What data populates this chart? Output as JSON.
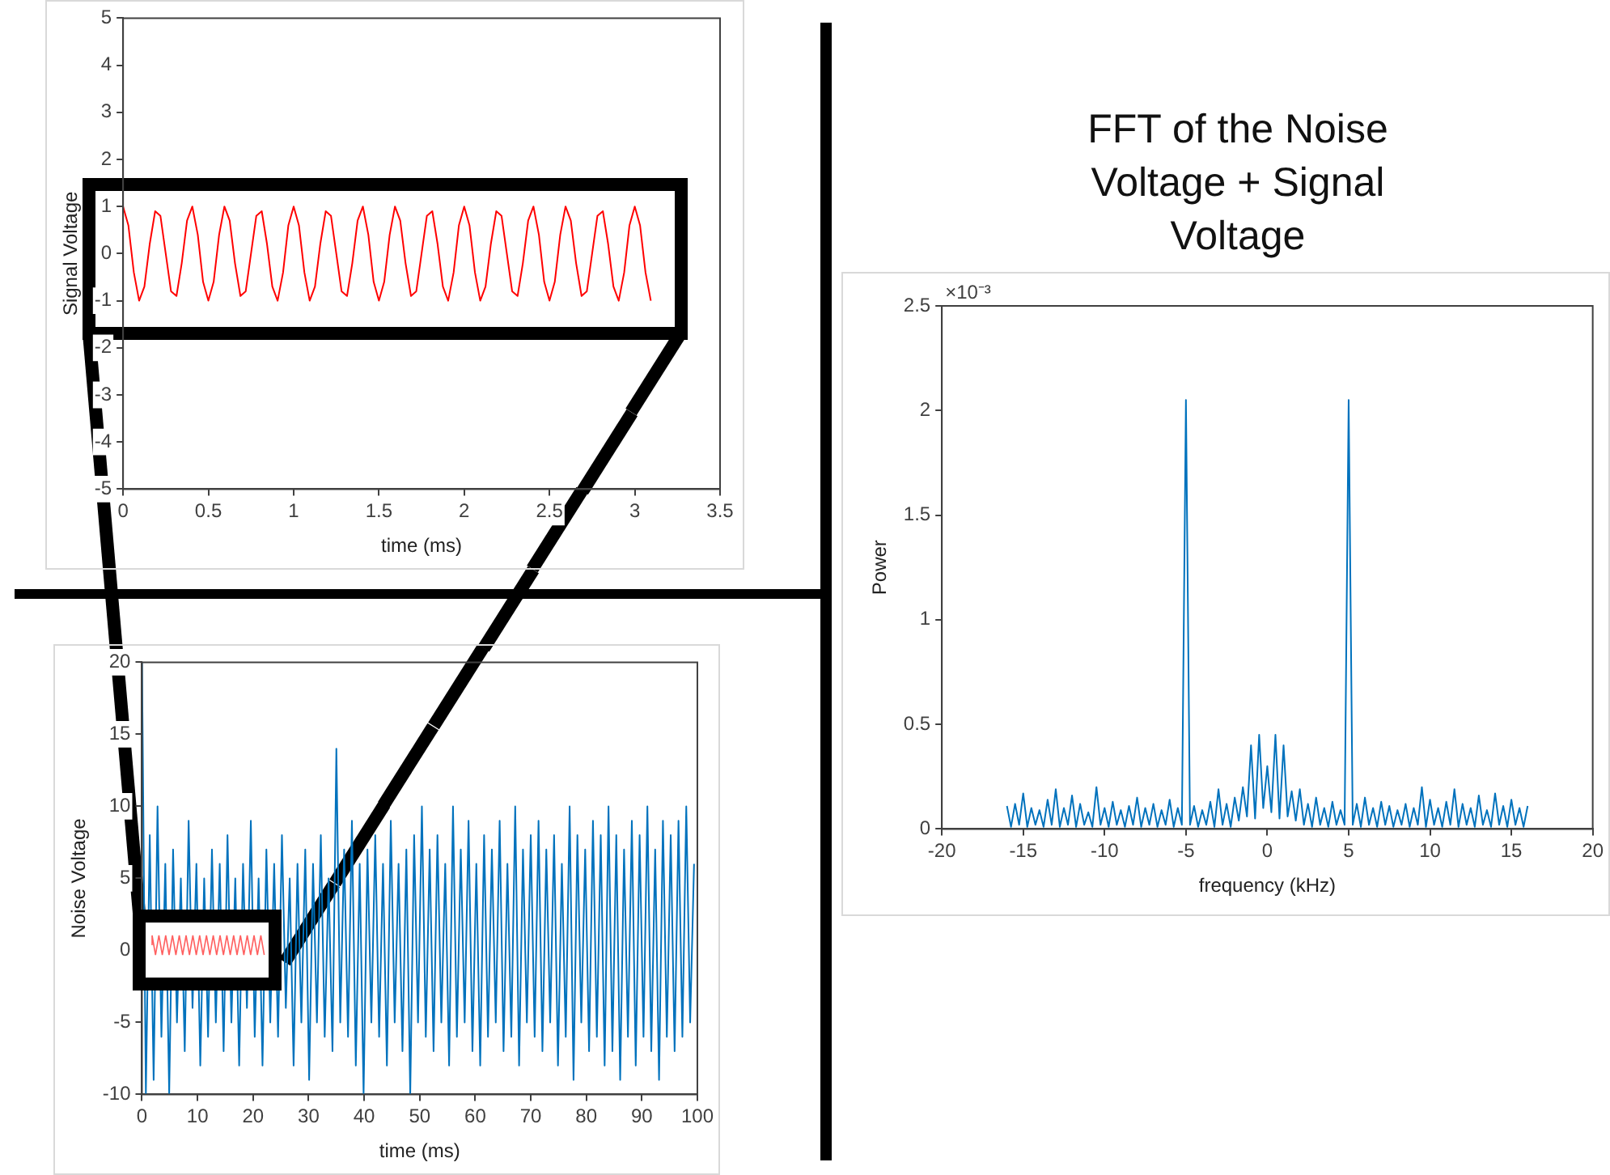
{
  "chart_data": [
    {
      "type": "line",
      "xlabel": "time (ms)",
      "ylabel": "Signal Voltage",
      "xlim": [
        0,
        3.5
      ],
      "xticks": [
        0,
        0.5,
        1,
        1.5,
        2,
        2.5,
        3,
        3.5
      ],
      "ylim": [
        -5,
        5
      ],
      "yticks": [
        -5,
        -4,
        -3,
        -2,
        -1,
        0,
        1,
        2,
        3,
        4,
        5
      ],
      "series": [
        {
          "color": "#ff0000",
          "x": [
            0,
            0.031,
            0.063,
            0.094,
            0.125,
            0.156,
            0.188,
            0.219,
            0.25,
            0.281,
            0.313,
            0.344,
            0.375,
            0.406,
            0.438,
            0.469,
            0.5,
            0.531,
            0.563,
            0.594,
            0.625,
            0.656,
            0.688,
            0.719,
            0.75,
            0.781,
            0.813,
            0.844,
            0.875,
            0.906,
            0.938,
            0.969,
            1,
            1.031,
            1.063,
            1.094,
            1.125,
            1.156,
            1.188,
            1.219,
            1.25,
            1.281,
            1.313,
            1.344,
            1.375,
            1.406,
            1.438,
            1.469,
            1.5,
            1.531,
            1.563,
            1.594,
            1.625,
            1.656,
            1.688,
            1.719,
            1.75,
            1.781,
            1.813,
            1.844,
            1.875,
            1.906,
            1.938,
            1.969,
            2,
            2.031,
            2.063,
            2.094,
            2.125,
            2.156,
            2.188,
            2.219,
            2.25,
            2.281,
            2.313,
            2.344,
            2.375,
            2.406,
            2.438,
            2.469,
            2.5,
            2.531,
            2.563,
            2.594,
            2.625,
            2.656,
            2.688,
            2.719,
            2.75,
            2.781,
            2.813,
            2.844,
            2.875,
            2.906,
            2.938,
            2.969,
            3,
            3.031,
            3.063,
            3.094
          ],
          "values": [
            1,
            0.6,
            -0.4,
            -1,
            -0.7,
            0.2,
            0.9,
            0.8,
            0,
            -0.8,
            -0.9,
            -0.2,
            0.7,
            1,
            0.4,
            -0.6,
            -1,
            -0.6,
            0.4,
            1,
            0.7,
            -0.2,
            -0.9,
            -0.8,
            0,
            0.8,
            0.9,
            0.2,
            -0.7,
            -1,
            -0.4,
            0.6,
            1,
            0.6,
            -0.4,
            -1,
            -0.7,
            0.2,
            0.9,
            0.8,
            0,
            -0.8,
            -0.9,
            -0.2,
            0.7,
            1,
            0.4,
            -0.6,
            -1,
            -0.6,
            0.4,
            1,
            0.7,
            -0.2,
            -0.9,
            -0.8,
            0,
            0.8,
            0.9,
            0.2,
            -0.7,
            -1,
            -0.4,
            0.6,
            1,
            0.6,
            -0.4,
            -1,
            -0.7,
            0.2,
            0.9,
            0.8,
            0,
            -0.8,
            -0.9,
            -0.2,
            0.7,
            1,
            0.4,
            -0.6,
            -1,
            -0.6,
            0.4,
            1,
            0.7,
            -0.2,
            -0.9,
            -0.8,
            0,
            0.8,
            0.9,
            0.2,
            -0.7,
            -1,
            -0.4,
            0.6,
            1,
            0.6,
            -0.4,
            -1
          ]
        }
      ]
    },
    {
      "type": "line",
      "xlabel": "time (ms)",
      "ylabel": "Noise Voltage",
      "xlim": [
        0,
        100
      ],
      "xticks": [
        0,
        10,
        20,
        30,
        40,
        50,
        60,
        70,
        80,
        90,
        100
      ],
      "ylim": [
        -10,
        20
      ],
      "yticks": [
        -10,
        -5,
        0,
        5,
        10,
        15,
        20
      ],
      "series": [
        {
          "color": "#0072bd",
          "x": [
            0,
            0.7,
            1.4,
            2.1,
            2.8,
            3.5,
            4.2,
            4.9,
            5.6,
            6.3,
            7,
            7.7,
            8.4,
            9.1,
            9.8,
            10.5,
            11.2,
            11.9,
            12.6,
            13.3,
            14,
            14.7,
            15.4,
            16.1,
            16.8,
            17.5,
            18.2,
            18.9,
            19.6,
            20.3,
            21,
            21.7,
            22.4,
            23.1,
            23.8,
            24.5,
            25.2,
            25.9,
            26.6,
            27.3,
            28,
            28.7,
            29.4,
            30.1,
            30.8,
            31.5,
            32.2,
            32.9,
            33.6,
            34.3,
            35,
            35.7,
            36.4,
            37.1,
            37.8,
            38.5,
            39.2,
            39.9,
            40.6,
            41.3,
            42,
            42.7,
            43.4,
            44.1,
            44.8,
            45.5,
            46.2,
            46.9,
            47.6,
            48.3,
            49,
            49.7,
            50.4,
            51.1,
            51.8,
            52.5,
            53.2,
            53.9,
            54.6,
            55.3,
            56,
            56.7,
            57.4,
            58.1,
            58.8,
            59.5,
            60.2,
            60.9,
            61.6,
            62.3,
            63,
            63.7,
            64.4,
            65.1,
            65.8,
            66.5,
            67.2,
            67.9,
            68.6,
            69.3,
            70,
            70.7,
            71.4,
            72.1,
            72.8,
            73.5,
            74.2,
            74.9,
            75.6,
            76.3,
            77,
            77.7,
            78.4,
            79.1,
            79.8,
            80.5,
            81.2,
            81.9,
            82.6,
            83.3,
            84,
            84.7,
            85.4,
            86.1,
            86.8,
            87.5,
            88.2,
            88.9,
            89.6,
            90.3,
            91,
            91.7,
            92.4,
            93.1,
            93.8,
            94.5,
            95.2,
            95.9,
            96.6,
            97.3,
            98,
            98.7,
            99.4
          ],
          "values": [
            20,
            -10,
            8,
            -9,
            10,
            -6,
            6,
            -10,
            7,
            -5,
            5,
            -7,
            9,
            -4,
            6,
            -8,
            5,
            -6,
            7,
            -5,
            6,
            -7,
            8,
            -5,
            5,
            -8,
            6,
            -4,
            9,
            -6,
            5,
            -8,
            7,
            -5,
            6,
            -6,
            8,
            -4,
            5,
            -8,
            6,
            -5,
            7,
            -9,
            6,
            -5,
            8,
            -6,
            5,
            -7,
            14,
            -5,
            7,
            -6,
            9,
            -8,
            6,
            -10,
            7,
            -5,
            8,
            -6,
            6,
            -8,
            9,
            -5,
            6,
            -7,
            7,
            -10,
            8,
            -5,
            10,
            -6,
            7,
            -7,
            8,
            -5,
            6,
            -8,
            10,
            -6,
            7,
            -5,
            9,
            -7,
            6,
            -8,
            8,
            -6,
            7,
            -5,
            9,
            -7,
            6,
            -6,
            10,
            -8,
            7,
            -5,
            8,
            -6,
            9,
            -7,
            7,
            -5,
            8,
            -8,
            6,
            -6,
            10,
            -9,
            8,
            -5,
            7,
            -7,
            9,
            -6,
            8,
            -8,
            10,
            -7,
            8,
            -9,
            7,
            -6,
            9,
            -8,
            8,
            -6,
            10,
            -7,
            7,
            -9,
            9,
            -6,
            8,
            -7,
            9,
            -6,
            10,
            -5,
            6
          ]
        }
      ]
    },
    {
      "type": "line",
      "title": "FFT of the Noise Voltage + Signal Voltage",
      "xlabel": "frequency (kHz)",
      "ylabel": "Power",
      "annotations": [
        "×10⁻³"
      ],
      "xlim": [
        -20,
        20
      ],
      "xticks": [
        -20,
        -15,
        -10,
        -5,
        0,
        5,
        10,
        15,
        20
      ],
      "ylim": [
        0,
        2.5
      ],
      "yticks": [
        0,
        0.5,
        1,
        1.5,
        2,
        2.5
      ],
      "series": [
        {
          "color": "#0072bd",
          "x": [
            -16,
            -15.75,
            -15.5,
            -15.25,
            -15,
            -14.75,
            -14.5,
            -14.25,
            -14,
            -13.75,
            -13.5,
            -13.25,
            -13,
            -12.75,
            -12.5,
            -12.25,
            -12,
            -11.75,
            -11.5,
            -11.25,
            -11,
            -10.75,
            -10.5,
            -10.25,
            -10,
            -9.75,
            -9.5,
            -9.25,
            -9,
            -8.75,
            -8.5,
            -8.25,
            -8,
            -7.75,
            -7.5,
            -7.25,
            -7,
            -6.75,
            -6.5,
            -6.25,
            -6,
            -5.75,
            -5.5,
            -5.25,
            -5,
            -4.75,
            -4.5,
            -4.25,
            -4,
            -3.75,
            -3.5,
            -3.25,
            -3,
            -2.75,
            -2.5,
            -2.25,
            -2,
            -1.75,
            -1.5,
            -1.25,
            -1,
            -0.75,
            -0.5,
            -0.25,
            0,
            0.25,
            0.5,
            0.75,
            1,
            1.25,
            1.5,
            1.75,
            2,
            2.25,
            2.5,
            2.75,
            3,
            3.25,
            3.5,
            3.75,
            4,
            4.25,
            4.5,
            4.75,
            5,
            5.25,
            5.5,
            5.75,
            6,
            6.25,
            6.5,
            6.75,
            7,
            7.25,
            7.5,
            7.75,
            8,
            8.25,
            8.5,
            8.75,
            9,
            9.25,
            9.5,
            9.75,
            10,
            10.25,
            10.5,
            10.75,
            11,
            11.25,
            11.5,
            11.75,
            12,
            12.25,
            12.5,
            12.75,
            13,
            13.25,
            13.5,
            13.75,
            14,
            14.25,
            14.5,
            14.75,
            15,
            15.25,
            15.5,
            15.75,
            16
          ],
          "values": [
            0.11,
            0.01,
            0.12,
            0.02,
            0.17,
            0.01,
            0.1,
            0.02,
            0.09,
            0.01,
            0.14,
            0.02,
            0.19,
            0.01,
            0.1,
            0.02,
            0.16,
            0.01,
            0.12,
            0.02,
            0.08,
            0.01,
            0.2,
            0.02,
            0.1,
            0.01,
            0.13,
            0.02,
            0.09,
            0.01,
            0.11,
            0.02,
            0.15,
            0.01,
            0.1,
            0.02,
            0.12,
            0.01,
            0.09,
            0.02,
            0.14,
            0.01,
            0.1,
            0.02,
            2.05,
            0.02,
            0.11,
            0.01,
            0.09,
            0.02,
            0.13,
            0.01,
            0.19,
            0.02,
            0.12,
            0.01,
            0.15,
            0.04,
            0.2,
            0.06,
            0.4,
            0.05,
            0.45,
            0.1,
            0.3,
            0.08,
            0.45,
            0.05,
            0.4,
            0.06,
            0.18,
            0.04,
            0.19,
            0.02,
            0.12,
            0.01,
            0.15,
            0.02,
            0.1,
            0.01,
            0.13,
            0.02,
            0.09,
            0.02,
            2.05,
            0.02,
            0.12,
            0.01,
            0.15,
            0.02,
            0.1,
            0.01,
            0.13,
            0.02,
            0.11,
            0.01,
            0.09,
            0.02,
            0.12,
            0.01,
            0.1,
            0.02,
            0.2,
            0.01,
            0.14,
            0.02,
            0.1,
            0.01,
            0.13,
            0.02,
            0.19,
            0.01,
            0.12,
            0.02,
            0.1,
            0.01,
            0.16,
            0.02,
            0.09,
            0.01,
            0.17,
            0.02,
            0.11,
            0.01,
            0.14,
            0.02,
            0.1,
            0.01,
            0.11
          ]
        }
      ]
    }
  ]
}
